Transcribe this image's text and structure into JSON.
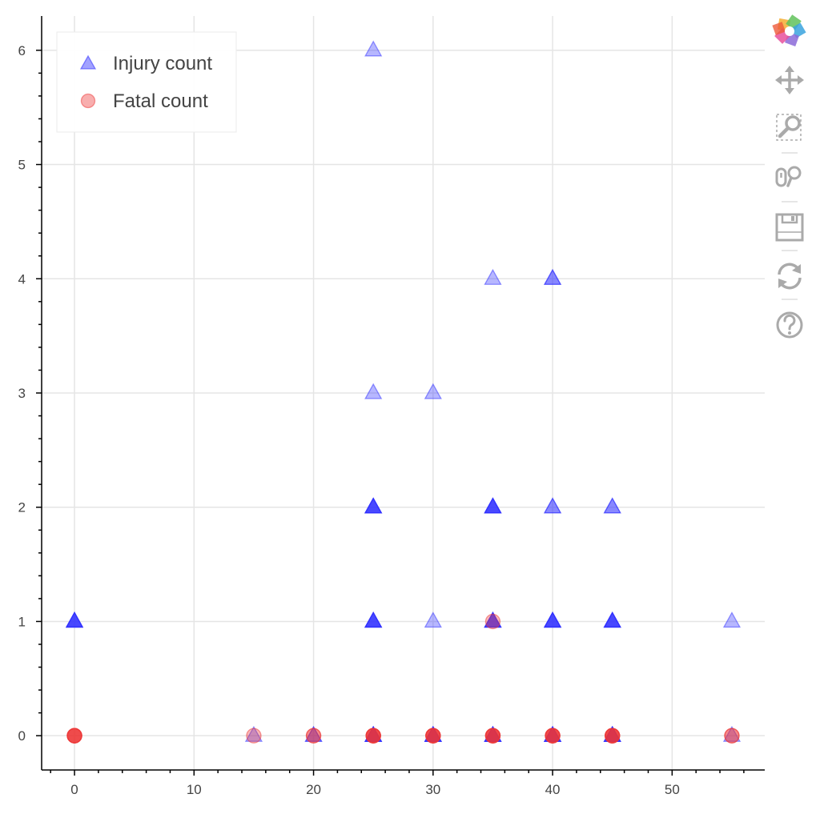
{
  "chart_data": {
    "type": "scatter",
    "title": "",
    "xlabel": "",
    "ylabel": "",
    "xlim": [
      -2.75,
      57.75
    ],
    "ylim": [
      -0.3,
      6.3
    ],
    "x_ticks": [
      0,
      10,
      20,
      30,
      40,
      50
    ],
    "y_ticks": [
      0,
      1,
      2,
      3,
      4,
      5,
      6
    ],
    "grid": true,
    "legend_position": "top-left",
    "series": [
      {
        "name": "Injury count",
        "marker": "triangle",
        "color": "#3030ff",
        "points": [
          {
            "x": 0,
            "y": 1,
            "n": 5
          },
          {
            "x": 15,
            "y": 0,
            "n": 1
          },
          {
            "x": 20,
            "y": 0,
            "n": 2
          },
          {
            "x": 25,
            "y": 6,
            "n": 1
          },
          {
            "x": 25,
            "y": 3,
            "n": 1
          },
          {
            "x": 25,
            "y": 2,
            "n": 5
          },
          {
            "x": 25,
            "y": 1,
            "n": 5
          },
          {
            "x": 25,
            "y": 0,
            "n": 5
          },
          {
            "x": 30,
            "y": 3,
            "n": 1
          },
          {
            "x": 30,
            "y": 1,
            "n": 1
          },
          {
            "x": 30,
            "y": 0,
            "n": 5
          },
          {
            "x": 35,
            "y": 4,
            "n": 1
          },
          {
            "x": 35,
            "y": 2,
            "n": 5
          },
          {
            "x": 35,
            "y": 1,
            "n": 5
          },
          {
            "x": 35,
            "y": 0,
            "n": 5
          },
          {
            "x": 40,
            "y": 4,
            "n": 2
          },
          {
            "x": 40,
            "y": 2,
            "n": 2
          },
          {
            "x": 40,
            "y": 1,
            "n": 5
          },
          {
            "x": 40,
            "y": 0,
            "n": 5
          },
          {
            "x": 45,
            "y": 2,
            "n": 2
          },
          {
            "x": 45,
            "y": 1,
            "n": 5
          },
          {
            "x": 45,
            "y": 0,
            "n": 5
          },
          {
            "x": 55,
            "y": 1,
            "n": 1
          },
          {
            "x": 55,
            "y": 0,
            "n": 1
          }
        ]
      },
      {
        "name": "Fatal count",
        "marker": "circle",
        "color": "#ee3535",
        "points": [
          {
            "x": 0,
            "y": 0,
            "n": 5
          },
          {
            "x": 15,
            "y": 0,
            "n": 1
          },
          {
            "x": 20,
            "y": 0,
            "n": 2
          },
          {
            "x": 25,
            "y": 0,
            "n": 5
          },
          {
            "x": 30,
            "y": 0,
            "n": 5
          },
          {
            "x": 35,
            "y": 1,
            "n": 1
          },
          {
            "x": 35,
            "y": 0,
            "n": 5
          },
          {
            "x": 40,
            "y": 0,
            "n": 5
          },
          {
            "x": 45,
            "y": 0,
            "n": 5
          },
          {
            "x": 55,
            "y": 0,
            "n": 2
          }
        ]
      }
    ]
  },
  "toolbar": {
    "tools": [
      {
        "icon": "bokeh-logo-icon"
      },
      {
        "icon": "pan-icon"
      },
      {
        "icon": "box-zoom-icon"
      },
      {
        "icon": "wheel-zoom-icon"
      },
      {
        "icon": "save-icon"
      },
      {
        "icon": "reset-icon"
      },
      {
        "icon": "help-icon"
      }
    ]
  },
  "colors": {
    "axis": "#000000",
    "grid": "#e5e5e5",
    "tick_label": "#444444",
    "toolbar_icon": "#aaaaaa",
    "active_tool": "#26aae1"
  }
}
